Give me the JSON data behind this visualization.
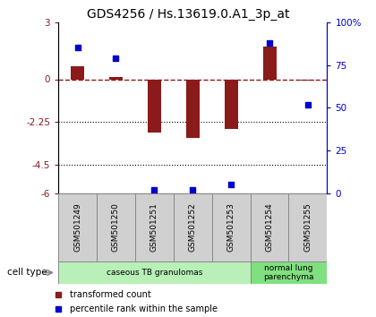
{
  "title": "GDS4256 / Hs.13619.0.A1_3p_at",
  "samples": [
    "GSM501249",
    "GSM501250",
    "GSM501251",
    "GSM501252",
    "GSM501253",
    "GSM501254",
    "GSM501255"
  ],
  "red_values": [
    0.7,
    0.1,
    -2.8,
    -3.1,
    -2.6,
    1.7,
    -0.05
  ],
  "blue_values": [
    85,
    79,
    2,
    2,
    5,
    88,
    52
  ],
  "ylim_left": [
    -6,
    3
  ],
  "ylim_right": [
    0,
    100
  ],
  "yticks_left": [
    3,
    0,
    -2.25,
    -4.5,
    -6
  ],
  "yticks_right": [
    100,
    75,
    50,
    25,
    0
  ],
  "ytick_labels_left": [
    "3",
    "0",
    "-2.25",
    "-4.5",
    "-6"
  ],
  "ytick_labels_right": [
    "100%",
    "75",
    "50",
    "25",
    "0"
  ],
  "dotted_lines": [
    -2.25,
    -4.5
  ],
  "bar_color": "#8B1A1A",
  "square_color": "#0000CD",
  "bar_width": 0.35,
  "square_size": 25,
  "groups": [
    {
      "label": "caseous TB granulomas",
      "start": 0,
      "end": 4,
      "color": "#b8f0b8"
    },
    {
      "label": "normal lung\nparenchyma",
      "start": 5,
      "end": 6,
      "color": "#80e080"
    }
  ],
  "legend_red_label": "transformed count",
  "legend_blue_label": "percentile rank within the sample",
  "cell_type_text": "cell type",
  "title_fontsize": 10,
  "tick_fontsize": 7.5,
  "label_fontsize": 6.5,
  "sample_box_color": "#d0d0d0",
  "sample_box_edge": "#888888"
}
